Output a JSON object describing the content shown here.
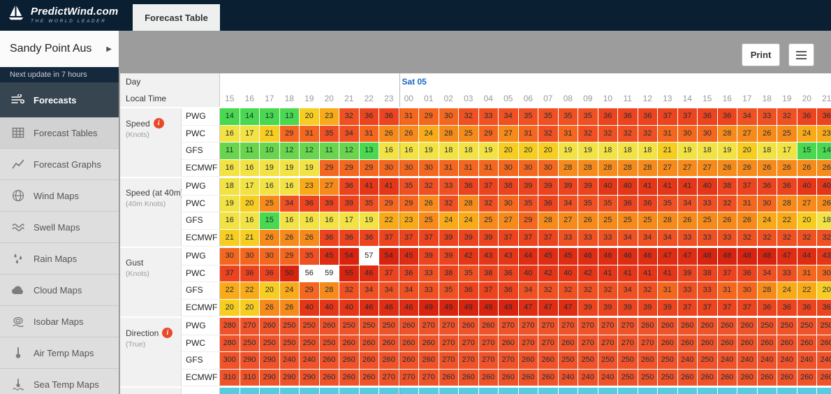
{
  "header": {
    "logo_title": "PredictWind.com",
    "logo_subtitle": "THE WORLD LEADER",
    "tab": "Forecast Table"
  },
  "sidebar": {
    "location": "Sandy Point Aus",
    "update_note": "Next update in 7 hours",
    "primary": {
      "label": "Forecasts"
    },
    "items": [
      {
        "label": "Forecast Tables"
      },
      {
        "label": "Forecast Graphs"
      },
      {
        "label": "Wind Maps"
      },
      {
        "label": "Swell Maps"
      },
      {
        "label": "Rain Maps"
      },
      {
        "label": "Cloud Maps"
      },
      {
        "label": "Isobar Maps"
      },
      {
        "label": "Air Temp Maps"
      },
      {
        "label": "Sea Temp Maps"
      }
    ]
  },
  "toolbar": {
    "print": "Print"
  },
  "table": {
    "day_label": "Day",
    "time_label": "Local Time",
    "day_marker": {
      "label": "Sat 05"
    },
    "day_boundary_col": 9,
    "hours": [
      "15",
      "16",
      "17",
      "18",
      "19",
      "20",
      "21",
      "22",
      "23",
      "00",
      "01",
      "02",
      "03",
      "04",
      "05",
      "06",
      "07",
      "08",
      "09",
      "10",
      "11",
      "12",
      "13",
      "14",
      "15",
      "16",
      "17",
      "18",
      "19",
      "20",
      "21"
    ],
    "groups": [
      {
        "name": "Speed",
        "unit": "(Knots)",
        "info": true,
        "type": "speed",
        "rows": [
          {
            "model": "PWG",
            "values": [
              14,
              14,
              13,
              13,
              20,
              23,
              32,
              36,
              36,
              31,
              29,
              30,
              32,
              33,
              34,
              35,
              35,
              35,
              35,
              36,
              36,
              36,
              37,
              37,
              36,
              36,
              34,
              33,
              32,
              36,
              36
            ]
          },
          {
            "model": "PWC",
            "values": [
              16,
              17,
              21,
              29,
              31,
              35,
              34,
              31,
              26,
              26,
              24,
              28,
              25,
              29,
              27,
              31,
              32,
              31,
              32,
              32,
              32,
              32,
              31,
              30,
              30,
              28,
              27,
              26,
              25,
              24,
              23
            ]
          },
          {
            "model": "GFS",
            "values": [
              11,
              11,
              10,
              12,
              12,
              11,
              12,
              13,
              16,
              16,
              19,
              18,
              18,
              19,
              20,
              20,
              20,
              19,
              19,
              18,
              18,
              18,
              21,
              19,
              18,
              19,
              20,
              18,
              17,
              15,
              14
            ]
          },
          {
            "model": "ECMWF",
            "values": [
              16,
              16,
              19,
              19,
              19,
              29,
              29,
              29,
              30,
              30,
              30,
              31,
              31,
              31,
              30,
              30,
              30,
              28,
              28,
              28,
              28,
              28,
              27,
              27,
              27,
              26,
              26,
              26,
              26,
              26,
              26
            ]
          }
        ]
      },
      {
        "name": "Speed (at 40m)",
        "unit": "(40m Knots)",
        "info": false,
        "type": "speed",
        "rows": [
          {
            "model": "PWG",
            "values": [
              18,
              17,
              16,
              16,
              23,
              27,
              36,
              41,
              41,
              35,
              32,
              33,
              36,
              37,
              38,
              39,
              39,
              39,
              39,
              40,
              40,
              41,
              41,
              41,
              40,
              38,
              37,
              36,
              36,
              40,
              40
            ]
          },
          {
            "model": "PWC",
            "values": [
              19,
              20,
              25,
              34,
              36,
              39,
              39,
              35,
              29,
              29,
              26,
              32,
              28,
              32,
              30,
              35,
              36,
              34,
              35,
              35,
              36,
              36,
              35,
              34,
              33,
              32,
              31,
              30,
              28,
              27,
              26
            ]
          },
          {
            "model": "GFS",
            "values": [
              16,
              16,
              15,
              16,
              16,
              16,
              17,
              19,
              22,
              23,
              25,
              24,
              24,
              25,
              27,
              29,
              28,
              27,
              26,
              25,
              25,
              25,
              28,
              26,
              25,
              26,
              26,
              24,
              22,
              20,
              18
            ]
          },
          {
            "model": "ECMWF",
            "values": [
              21,
              21,
              26,
              26,
              26,
              36,
              36,
              36,
              37,
              37,
              37,
              39,
              39,
              39,
              37,
              37,
              37,
              33,
              33,
              33,
              34,
              34,
              34,
              33,
              33,
              33,
              32,
              32,
              32,
              32,
              32
            ]
          }
        ]
      },
      {
        "name": "Gust",
        "unit": "(Knots)",
        "info": false,
        "type": "speed",
        "rows": [
          {
            "model": "PWG",
            "values": [
              30,
              30,
              30,
              29,
              35,
              45,
              54,
              57,
              54,
              45,
              39,
              39,
              42,
              43,
              43,
              44,
              45,
              45,
              46,
              46,
              46,
              46,
              47,
              47,
              48,
              48,
              48,
              48,
              47,
              44,
              43
            ]
          },
          {
            "model": "PWC",
            "values": [
              37,
              36,
              36,
              50,
              56,
              59,
              55,
              46,
              37,
              36,
              33,
              38,
              35,
              38,
              36,
              40,
              42,
              40,
              42,
              41,
              41,
              41,
              41,
              39,
              38,
              37,
              36,
              34,
              33,
              31,
              30
            ]
          },
          {
            "model": "GFS",
            "values": [
              22,
              22,
              20,
              24,
              29,
              28,
              32,
              34,
              34,
              34,
              33,
              35,
              36,
              37,
              36,
              34,
              32,
              32,
              32,
              32,
              34,
              32,
              31,
              33,
              33,
              31,
              30,
              28,
              24,
              22,
              20
            ]
          },
          {
            "model": "ECMWF",
            "values": [
              20,
              20,
              26,
              26,
              40,
              40,
              40,
              46,
              46,
              46,
              49,
              49,
              49,
              49,
              49,
              47,
              47,
              47,
              39,
              39,
              39,
              39,
              39,
              37,
              37,
              37,
              37,
              36,
              36,
              36,
              36
            ]
          }
        ]
      },
      {
        "name": "Direction",
        "unit": "(True)",
        "info": true,
        "type": "direction",
        "rows": [
          {
            "model": "PWG",
            "values": [
              280,
              270,
              260,
              250,
              250,
              260,
              250,
              250,
              250,
              260,
              270,
              270,
              260,
              260,
              270,
              270,
              270,
              270,
              270,
              270,
              270,
              260,
              260,
              260,
              260,
              260,
              260,
              250,
              250,
              250,
              250
            ]
          },
          {
            "model": "PWC",
            "values": [
              280,
              250,
              250,
              250,
              250,
              250,
              260,
              260,
              260,
              260,
              260,
              270,
              270,
              270,
              260,
              270,
              270,
              260,
              270,
              270,
              270,
              270,
              260,
              260,
              260,
              260,
              260,
              260,
              260,
              260,
              260
            ]
          },
          {
            "model": "GFS",
            "values": [
              300,
              290,
              290,
              240,
              240,
              260,
              260,
              260,
              260,
              260,
              260,
              270,
              270,
              270,
              270,
              260,
              260,
              250,
              250,
              250,
              250,
              260,
              250,
              240,
              250,
              240,
              240,
              240,
              240,
              240,
              240
            ]
          },
          {
            "model": "ECMWF",
            "values": [
              310,
              310,
              290,
              290,
              290,
              260,
              260,
              260,
              270,
              270,
              270,
              260,
              260,
              260,
              260,
              260,
              260,
              240,
              240,
              240,
              250,
              250,
              250,
              260,
              260,
              260,
              260,
              260,
              260,
              260,
              260
            ]
          }
        ]
      }
    ],
    "colors": {
      "scale": [
        {
          "min": 56,
          "bg": "#ffffff",
          "fg": "#222222"
        },
        {
          "min": 48,
          "bg": "#d8240e"
        },
        {
          "min": 44,
          "bg": "#de2d12"
        },
        {
          "min": 40,
          "bg": "#e53617"
        },
        {
          "min": 36,
          "bg": "#ec441e"
        },
        {
          "min": 32,
          "bg": "#f05123"
        },
        {
          "min": 29,
          "bg": "#f4671f"
        },
        {
          "min": 25,
          "bg": "#f68b1b"
        },
        {
          "min": 22,
          "bg": "#f8aa19"
        },
        {
          "min": 20,
          "bg": "#f7cd22"
        },
        {
          "min": 16,
          "bg": "#f2e244"
        },
        {
          "min": 13,
          "bg": "#49d84f"
        },
        {
          "min": 10,
          "bg": "#68d54d"
        },
        {
          "min": 0,
          "bg": "#ffffff"
        }
      ],
      "direction": "#ef5329",
      "next_group": "#58cbe3",
      "day_accent": "#1767c0"
    }
  }
}
